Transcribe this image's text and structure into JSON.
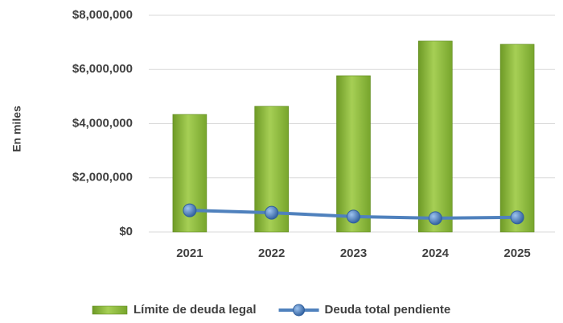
{
  "chart_data": {
    "type": "combo",
    "y_label": "En miles",
    "categories": [
      "2021",
      "2022",
      "2023",
      "2024",
      "2025"
    ],
    "series": [
      {
        "name": "Límite de deuda legal",
        "type": "bar",
        "color": "#8cbb3c",
        "values": [
          4340000,
          4640000,
          5770000,
          7050000,
          6930000
        ]
      },
      {
        "name": "Deuda total pendiente",
        "type": "line",
        "color": "#4f81bd",
        "values": [
          800000,
          710000,
          570000,
          510000,
          540000
        ]
      }
    ],
    "ylim": [
      0,
      8000000
    ],
    "yticks": [
      {
        "value": 0,
        "label": "$0"
      },
      {
        "value": 2000000,
        "label": "$2,000,000"
      },
      {
        "value": 4000000,
        "label": "$4,000,000"
      },
      {
        "value": 6000000,
        "label": "$6,000,000"
      },
      {
        "value": 8000000,
        "label": "$8,000,000"
      }
    ],
    "grid": true,
    "legend": "bottom"
  }
}
